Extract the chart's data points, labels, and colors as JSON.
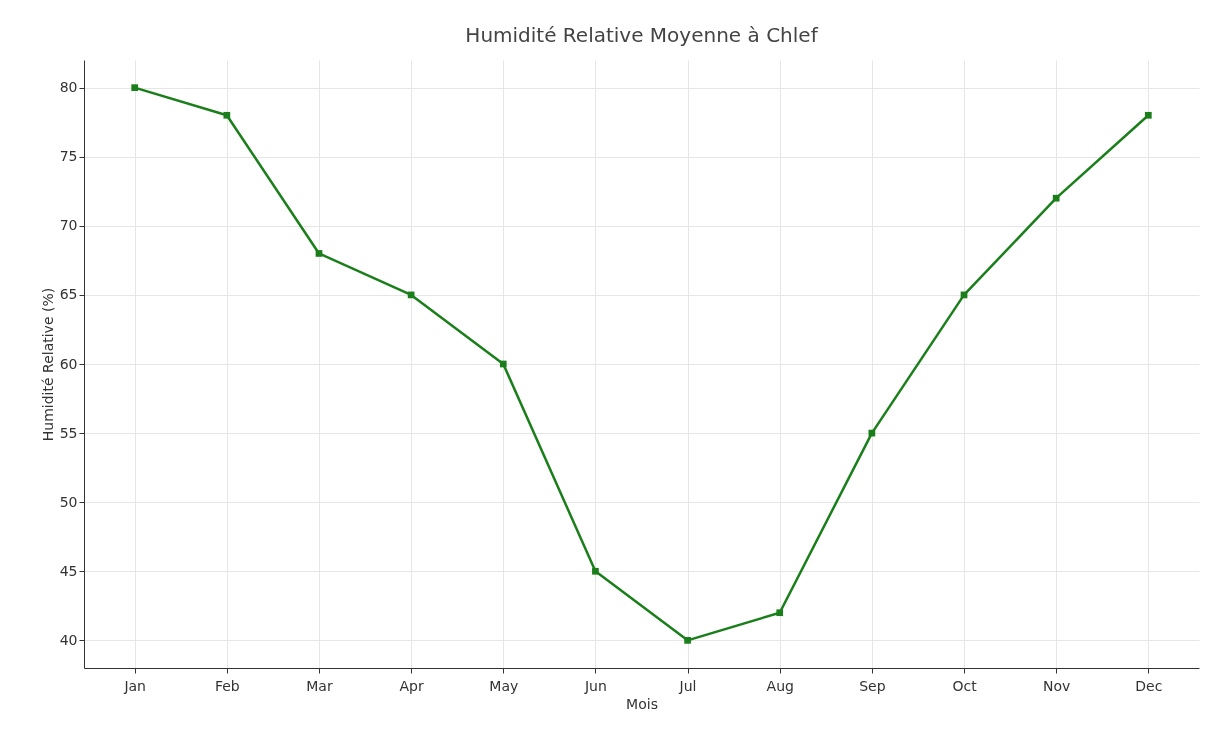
{
  "chart_data": {
    "type": "line",
    "title": "Humidité Relative Moyenne à Chlef",
    "xlabel": "Mois",
    "ylabel": "Humidité Relative (%)",
    "categories": [
      "Jan",
      "Feb",
      "Mar",
      "Apr",
      "May",
      "Jun",
      "Jul",
      "Aug",
      "Sep",
      "Oct",
      "Nov",
      "Dec"
    ],
    "series": [
      {
        "color": "#1a7f1a",
        "values": [
          80,
          78,
          68,
          65,
          60,
          45,
          40,
          42,
          55,
          65,
          72,
          78
        ]
      }
    ],
    "ylim": [
      38,
      82
    ],
    "yticks": [
      40,
      45,
      50,
      55,
      60,
      65,
      70,
      75,
      80
    ],
    "grid": true,
    "marker": "square",
    "line_style": "solid"
  }
}
